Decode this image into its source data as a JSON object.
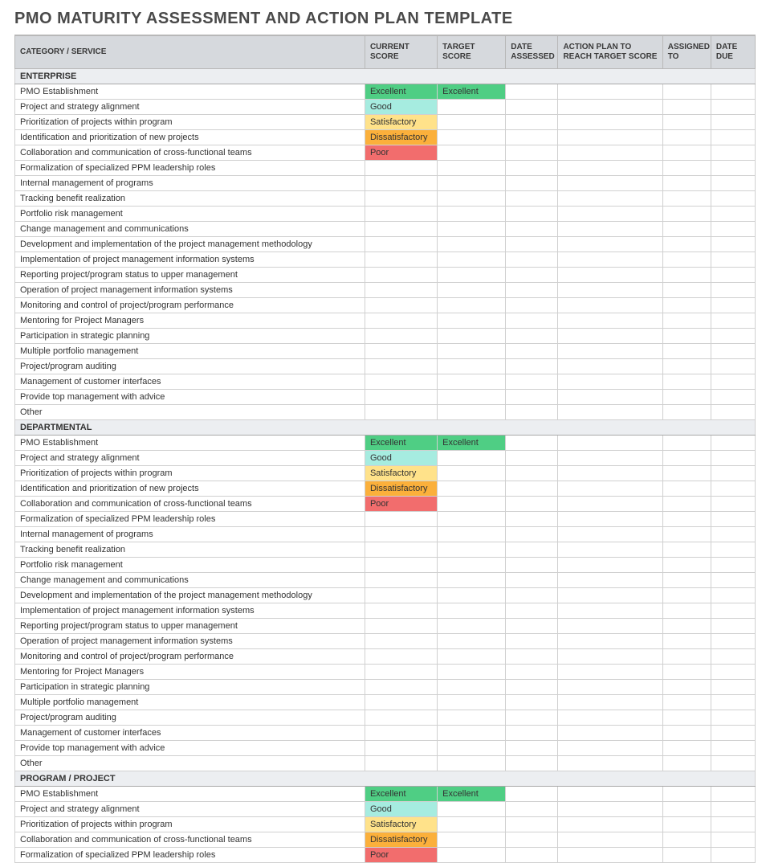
{
  "title": "PMO MATURITY ASSESSMENT AND ACTION PLAN TEMPLATE",
  "columns": [
    "CATEGORY / SERVICE",
    "CURRENT SCORE",
    "TARGET SCORE",
    "DATE ASSESSED",
    "ACTION PLAN TO REACH TARGET SCORE",
    "ASSIGNED TO",
    "DATE DUE"
  ],
  "score_colors": {
    "Excellent": "#4fce84",
    "Good": "#a6ece0",
    "Satisfactory": "#ffe28a",
    "Dissatisfactory": "#fbb03b",
    "Poor": "#f26d6d"
  },
  "section_row_bg": "#eceef1",
  "sections": [
    {
      "name": "ENTERPRISE",
      "rows": [
        {
          "category": "PMO Establishment",
          "current": "Excellent",
          "target": "Excellent"
        },
        {
          "category": "Project and strategy alignment",
          "current": "Good",
          "target": ""
        },
        {
          "category": "Prioritization of projects within program",
          "current": "Satisfactory",
          "target": ""
        },
        {
          "category": "Identification and prioritization of new projects",
          "current": "Dissatisfactory",
          "target": ""
        },
        {
          "category": "Collaboration and communication of cross-functional teams",
          "current": "Poor",
          "target": ""
        },
        {
          "category": "Formalization of specialized PPM leadership roles",
          "current": "",
          "target": ""
        },
        {
          "category": "Internal management of programs",
          "current": "",
          "target": ""
        },
        {
          "category": "Tracking benefit realization",
          "current": "",
          "target": ""
        },
        {
          "category": "Portfolio risk management",
          "current": "",
          "target": ""
        },
        {
          "category": "Change management and communications",
          "current": "",
          "target": ""
        },
        {
          "category": "Development and implementation of the project management methodology",
          "current": "",
          "target": ""
        },
        {
          "category": "Implementation of project management information systems",
          "current": "",
          "target": ""
        },
        {
          "category": "Reporting project/program status to upper management",
          "current": "",
          "target": ""
        },
        {
          "category": "Operation of project management information systems",
          "current": "",
          "target": ""
        },
        {
          "category": "Monitoring and control of project/program performance",
          "current": "",
          "target": ""
        },
        {
          "category": "Mentoring for Project Managers",
          "current": "",
          "target": ""
        },
        {
          "category": "Participation in strategic planning",
          "current": "",
          "target": ""
        },
        {
          "category": "Multiple portfolio management",
          "current": "",
          "target": ""
        },
        {
          "category": "Project/program auditing",
          "current": "",
          "target": ""
        },
        {
          "category": "Management of customer interfaces",
          "current": "",
          "target": ""
        },
        {
          "category": "Provide top management with advice",
          "current": "",
          "target": ""
        },
        {
          "category": "Other",
          "current": "",
          "target": ""
        }
      ]
    },
    {
      "name": "DEPARTMENTAL",
      "rows": [
        {
          "category": "PMO Establishment",
          "current": "Excellent",
          "target": "Excellent"
        },
        {
          "category": "Project and strategy alignment",
          "current": "Good",
          "target": ""
        },
        {
          "category": "Prioritization of projects within program",
          "current": "Satisfactory",
          "target": ""
        },
        {
          "category": "Identification and prioritization of new projects",
          "current": "Dissatisfactory",
          "target": ""
        },
        {
          "category": "Collaboration and communication of cross-functional teams",
          "current": "Poor",
          "target": ""
        },
        {
          "category": "Formalization of specialized PPM leadership roles",
          "current": "",
          "target": ""
        },
        {
          "category": "Internal management of programs",
          "current": "",
          "target": ""
        },
        {
          "category": "Tracking benefit realization",
          "current": "",
          "target": ""
        },
        {
          "category": "Portfolio risk management",
          "current": "",
          "target": ""
        },
        {
          "category": "Change management and communications",
          "current": "",
          "target": ""
        },
        {
          "category": "Development and implementation of the project management methodology",
          "current": "",
          "target": ""
        },
        {
          "category": "Implementation of project management information systems",
          "current": "",
          "target": ""
        },
        {
          "category": "Reporting project/program status to upper management",
          "current": "",
          "target": ""
        },
        {
          "category": "Operation of project management information systems",
          "current": "",
          "target": ""
        },
        {
          "category": "Monitoring and control of project/program performance",
          "current": "",
          "target": ""
        },
        {
          "category": "Mentoring for Project Managers",
          "current": "",
          "target": ""
        },
        {
          "category": "Participation in strategic planning",
          "current": "",
          "target": ""
        },
        {
          "category": "Multiple portfolio management",
          "current": "",
          "target": ""
        },
        {
          "category": "Project/program auditing",
          "current": "",
          "target": ""
        },
        {
          "category": "Management of customer interfaces",
          "current": "",
          "target": ""
        },
        {
          "category": "Provide top management with advice",
          "current": "",
          "target": ""
        },
        {
          "category": "Other",
          "current": "",
          "target": ""
        }
      ]
    },
    {
      "name": "PROGRAM / PROJECT",
      "rows": [
        {
          "category": "PMO Establishment",
          "current": "Excellent",
          "target": "Excellent"
        },
        {
          "category": "Project and strategy alignment",
          "current": "Good",
          "target": ""
        },
        {
          "category": "Prioritization of projects within program",
          "current": "Satisfactory",
          "target": ""
        },
        {
          "category": "Collaboration and communication of cross-functional teams",
          "current": "Dissatisfactory",
          "target": ""
        },
        {
          "category": "Formalization of specialized PPM leadership roles",
          "current": "Poor",
          "target": ""
        }
      ]
    }
  ]
}
